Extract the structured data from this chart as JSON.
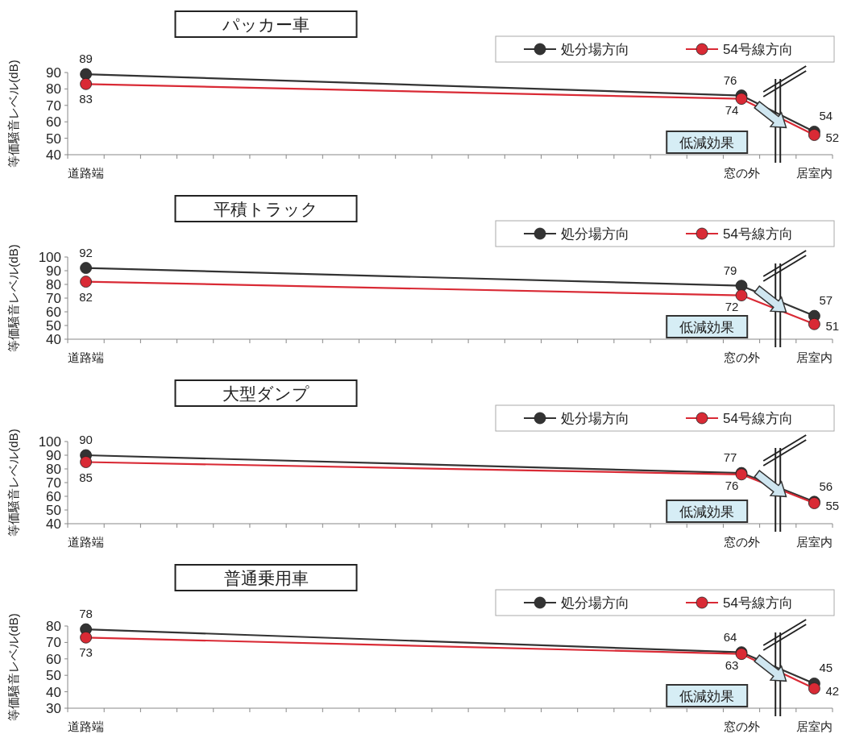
{
  "chart_data": [
    {
      "type": "line",
      "title": "パッカー車",
      "ylabel": "等価騒音レベル(dB)",
      "categories": [
        "道路端",
        null,
        null,
        null,
        null,
        null,
        null,
        null,
        null,
        null,
        null,
        null,
        null,
        null,
        null,
        null,
        null,
        null,
        "窓の外",
        null,
        "居室内"
      ],
      "ylim": [
        40,
        90
      ],
      "yticks": [
        40,
        50,
        60,
        70,
        80,
        90
      ],
      "legend": "top right",
      "marker": "circle",
      "data_labels": true,
      "annotations": [
        "低減効果"
      ],
      "series": [
        {
          "name": "処分場方向",
          "color": "#333333",
          "values": [
            89,
            null,
            null,
            null,
            null,
            null,
            null,
            null,
            null,
            null,
            null,
            null,
            null,
            null,
            null,
            null,
            null,
            null,
            76,
            null,
            54
          ]
        },
        {
          "name": "54号線方向",
          "color": "#d92a35",
          "values": [
            83,
            null,
            null,
            null,
            null,
            null,
            null,
            null,
            null,
            null,
            null,
            null,
            null,
            null,
            null,
            null,
            null,
            null,
            74,
            null,
            52
          ]
        }
      ]
    },
    {
      "type": "line",
      "title": "平積トラック",
      "ylabel": "等価騒音レベル(dB)",
      "categories": [
        "道路端",
        null,
        null,
        null,
        null,
        null,
        null,
        null,
        null,
        null,
        null,
        null,
        null,
        null,
        null,
        null,
        null,
        null,
        "窓の外",
        null,
        "居室内"
      ],
      "ylim": [
        40,
        100
      ],
      "yticks": [
        40,
        50,
        60,
        70,
        80,
        90,
        100
      ],
      "legend": "top right",
      "marker": "circle",
      "data_labels": true,
      "annotations": [
        "低減効果"
      ],
      "series": [
        {
          "name": "処分場方向",
          "color": "#333333",
          "values": [
            92,
            null,
            null,
            null,
            null,
            null,
            null,
            null,
            null,
            null,
            null,
            null,
            null,
            null,
            null,
            null,
            null,
            null,
            79,
            null,
            57
          ]
        },
        {
          "name": "54号線方向",
          "color": "#d92a35",
          "values": [
            82,
            null,
            null,
            null,
            null,
            null,
            null,
            null,
            null,
            null,
            null,
            null,
            null,
            null,
            null,
            null,
            null,
            null,
            72,
            null,
            51
          ]
        }
      ]
    },
    {
      "type": "line",
      "title": "大型ダンプ",
      "ylabel": "等価騒音レベル(dB)",
      "categories": [
        "道路端",
        null,
        null,
        null,
        null,
        null,
        null,
        null,
        null,
        null,
        null,
        null,
        null,
        null,
        null,
        null,
        null,
        null,
        "窓の外",
        null,
        "居室内"
      ],
      "ylim": [
        40,
        100
      ],
      "yticks": [
        40,
        50,
        60,
        70,
        80,
        90,
        100
      ],
      "legend": "top right",
      "marker": "circle",
      "data_labels": true,
      "annotations": [
        "低減効果"
      ],
      "series": [
        {
          "name": "処分場方向",
          "color": "#333333",
          "values": [
            90,
            null,
            null,
            null,
            null,
            null,
            null,
            null,
            null,
            null,
            null,
            null,
            null,
            null,
            null,
            null,
            null,
            null,
            77,
            null,
            56
          ]
        },
        {
          "name": "54号線方向",
          "color": "#d92a35",
          "values": [
            85,
            null,
            null,
            null,
            null,
            null,
            null,
            null,
            null,
            null,
            null,
            null,
            null,
            null,
            null,
            null,
            null,
            null,
            76,
            null,
            55
          ]
        }
      ]
    },
    {
      "type": "line",
      "title": "普通乗用車",
      "ylabel": "等価騒音レベル(dB)",
      "categories": [
        "道路端",
        null,
        null,
        null,
        null,
        null,
        null,
        null,
        null,
        null,
        null,
        null,
        null,
        null,
        null,
        null,
        null,
        null,
        "窓の外",
        null,
        "居室内"
      ],
      "ylim": [
        30,
        80
      ],
      "yticks": [
        30,
        40,
        50,
        60,
        70,
        80
      ],
      "legend": "top right",
      "marker": "circle",
      "data_labels": true,
      "annotations": [
        "低減効果"
      ],
      "series": [
        {
          "name": "処分場方向",
          "color": "#333333",
          "values": [
            78,
            null,
            null,
            null,
            null,
            null,
            null,
            null,
            null,
            null,
            null,
            null,
            null,
            null,
            null,
            null,
            null,
            null,
            64,
            null,
            45
          ]
        },
        {
          "name": "54号線方向",
          "color": "#d92a35",
          "values": [
            73,
            null,
            null,
            null,
            null,
            null,
            null,
            null,
            null,
            null,
            null,
            null,
            null,
            null,
            null,
            null,
            null,
            null,
            63,
            null,
            42
          ]
        }
      ]
    }
  ]
}
